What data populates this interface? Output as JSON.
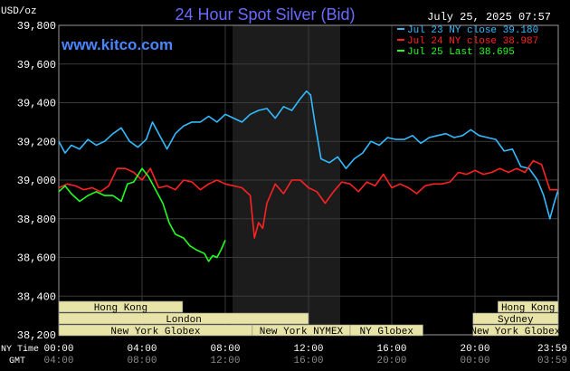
{
  "header": {
    "unit": "USD/oz",
    "title": "24 Hour Spot Silver (Bid)",
    "timestamp": "July 25, 2025 07:57",
    "watermark": "www.kitco.com"
  },
  "colors": {
    "background": "#000000",
    "plot_area": "#000000",
    "night_shade": "#1c1c1c",
    "grid": "#3a3a3a",
    "axis_text": "#ffffff",
    "title": "#6a6aff",
    "jul23": "#33bbff",
    "jul24": "#ff2222",
    "jul25": "#22ff22",
    "session_bar": "#e8e4a8",
    "session_text": "#000000"
  },
  "legend": [
    {
      "label": "Jul 23 NY close 39.180",
      "color": "#33bbff"
    },
    {
      "label": "Jul 24 NY close 38.987",
      "color": "#ff2222"
    },
    {
      "label": "Jul 25 Last 38.695",
      "color": "#22ff22"
    }
  ],
  "sessions": [
    {
      "label": "Hong Kong",
      "start": -0.2,
      "end": 5.95,
      "row": 0
    },
    {
      "label": "Hong Kong",
      "start": 21.1,
      "end": 24.0,
      "row": 0
    },
    {
      "label": "London",
      "start": -0.2,
      "end": 12.0,
      "row": 1
    },
    {
      "label": "Sydney",
      "start": 19.9,
      "end": 24.0,
      "row": 1
    },
    {
      "label": "New York Globex",
      "start": -0.2,
      "end": 9.3,
      "row": 2
    },
    {
      "label": "New York NYMEX",
      "start": 9.3,
      "end": 14.0,
      "row": 2
    },
    {
      "label": "NY Globex",
      "start": 14.0,
      "end": 17.5,
      "row": 2
    },
    {
      "label": "New York Globex",
      "start": 19.9,
      "end": 24.0,
      "row": 2
    }
  ],
  "axis_footer": {
    "ny_time_label": "NY Time",
    "gmt_label": "GMT",
    "ny_ticks": [
      "00:00",
      "04:00",
      "08:00",
      "12:00",
      "16:00",
      "20:00",
      "23:59"
    ],
    "gmt_ticks": [
      "04:00",
      "08:00",
      "12:00",
      "16:00",
      "20:00",
      "00:00",
      "03:59"
    ]
  },
  "chart_data": {
    "type": "line",
    "title": "24 Hour Spot Silver (Bid)",
    "ylabel": "USD/oz",
    "xlabel": "NY Time",
    "ylim": [
      38.2,
      39.8
    ],
    "xlim": [
      0,
      24
    ],
    "yticks": [
      "39,800",
      "39,600",
      "39,400",
      "39,200",
      "39,000",
      "38,800",
      "38,600",
      "38,400",
      "38,200"
    ],
    "ytick_values": [
      39.8,
      39.6,
      39.4,
      39.2,
      39.0,
      38.8,
      38.6,
      38.4,
      38.2
    ],
    "grid": true,
    "legend_position": "top-right",
    "series": [
      {
        "name": "Jul 23 NY close 39.180",
        "color": "#33bbff",
        "x": [
          0,
          0.3,
          0.6,
          1.0,
          1.4,
          1.8,
          2.2,
          2.6,
          3.0,
          3.4,
          3.8,
          4.2,
          4.5,
          4.8,
          5.2,
          5.6,
          6.0,
          6.4,
          6.8,
          7.2,
          7.6,
          8.0,
          8.4,
          8.8,
          9.2,
          9.6,
          10.0,
          10.4,
          10.8,
          11.2,
          11.6,
          11.9,
          12.1,
          12.3,
          12.6,
          13.0,
          13.4,
          13.8,
          14.2,
          14.6,
          15.0,
          15.4,
          15.8,
          16.2,
          16.6,
          17.0,
          17.4,
          17.8,
          18.2,
          18.6,
          19.0,
          19.4,
          19.8,
          20.2,
          20.6,
          21.0,
          21.4,
          21.8,
          22.2,
          22.6,
          23.0,
          23.3,
          23.6,
          23.8,
          24.0
        ],
        "values": [
          39.2,
          39.14,
          39.18,
          39.16,
          39.21,
          39.18,
          39.2,
          39.24,
          39.27,
          39.2,
          39.17,
          39.21,
          39.3,
          39.24,
          39.16,
          39.24,
          39.28,
          39.3,
          39.3,
          39.33,
          39.3,
          39.34,
          39.32,
          39.3,
          39.34,
          39.36,
          39.37,
          39.32,
          39.38,
          39.36,
          39.42,
          39.46,
          39.44,
          39.3,
          39.11,
          39.09,
          39.12,
          39.06,
          39.11,
          39.14,
          39.2,
          39.18,
          39.22,
          39.21,
          39.21,
          39.23,
          39.19,
          39.22,
          39.23,
          39.24,
          39.22,
          39.23,
          39.26,
          39.23,
          39.22,
          39.21,
          39.15,
          39.16,
          39.07,
          39.06,
          39.0,
          38.92,
          38.8,
          38.88,
          38.95
        ]
      },
      {
        "name": "Jul 24 NY close 38.987",
        "color": "#ff2222",
        "x": [
          0,
          0.4,
          0.8,
          1.2,
          1.6,
          2.0,
          2.4,
          2.8,
          3.2,
          3.6,
          4.0,
          4.4,
          4.8,
          5.2,
          5.6,
          6.0,
          6.4,
          6.8,
          7.2,
          7.6,
          8.0,
          8.4,
          8.8,
          9.2,
          9.4,
          9.6,
          9.8,
          10.0,
          10.4,
          10.8,
          11.2,
          11.6,
          12.0,
          12.4,
          12.8,
          13.2,
          13.6,
          14.0,
          14.4,
          14.8,
          15.2,
          15.6,
          16.0,
          16.4,
          16.8,
          17.2,
          17.6,
          18.0,
          18.4,
          18.8,
          19.2,
          19.6,
          20.0,
          20.4,
          20.8,
          21.2,
          21.6,
          22.0,
          22.4,
          22.8,
          23.2,
          23.6,
          24.0
        ],
        "values": [
          38.96,
          38.98,
          38.97,
          38.95,
          38.96,
          38.94,
          38.97,
          39.06,
          39.06,
          39.04,
          39.0,
          39.06,
          38.96,
          38.97,
          38.95,
          39.0,
          38.99,
          38.95,
          38.98,
          39.0,
          38.98,
          38.97,
          38.96,
          38.92,
          38.7,
          38.78,
          38.75,
          38.88,
          38.98,
          38.93,
          39.0,
          39.0,
          38.96,
          38.94,
          38.88,
          38.94,
          38.99,
          38.98,
          38.94,
          38.99,
          38.97,
          39.03,
          38.96,
          38.98,
          38.96,
          38.93,
          38.97,
          38.98,
          38.98,
          38.99,
          39.04,
          39.03,
          39.05,
          39.03,
          39.04,
          39.06,
          39.04,
          39.06,
          39.04,
          39.1,
          39.08,
          38.95,
          38.95
        ]
      },
      {
        "name": "Jul 25 Last 38.695",
        "color": "#22ff22",
        "x": [
          0,
          0.3,
          0.6,
          1.0,
          1.4,
          1.8,
          2.2,
          2.6,
          3.0,
          3.3,
          3.6,
          4.0,
          4.3,
          4.6,
          5.0,
          5.3,
          5.6,
          6.0,
          6.3,
          6.6,
          7.0,
          7.2,
          7.4,
          7.6,
          7.8,
          8.0
        ],
        "values": [
          38.94,
          38.97,
          38.93,
          38.89,
          38.92,
          38.94,
          38.92,
          38.92,
          38.89,
          38.98,
          38.99,
          39.06,
          39.02,
          38.96,
          38.88,
          38.78,
          38.72,
          38.7,
          38.66,
          38.64,
          38.62,
          38.58,
          38.61,
          38.6,
          38.64,
          38.69
        ]
      }
    ]
  }
}
